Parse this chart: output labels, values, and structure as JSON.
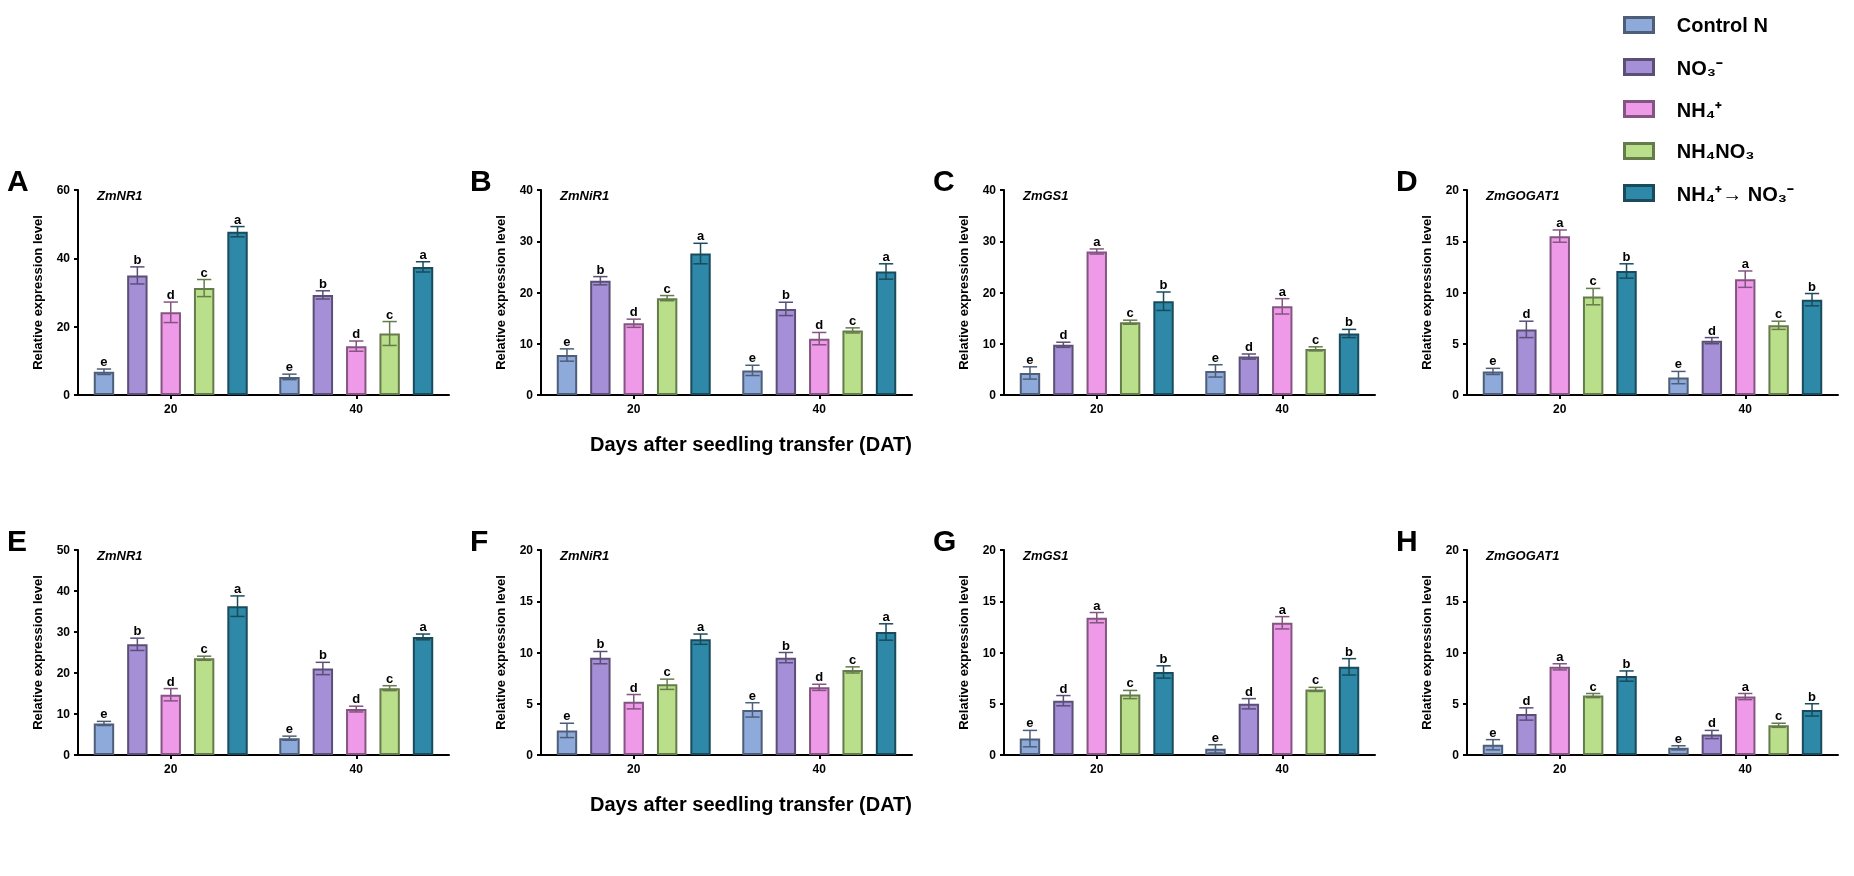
{
  "chart_data": [
    {
      "type": "bar",
      "title": "A",
      "subtitle": "ZmNR1",
      "ylabel": "Relative expression level",
      "legend": "top right",
      "grid": false,
      "categories": [
        "20",
        "40"
      ],
      "ylim": [
        0,
        60
      ],
      "yticks": [
        0,
        20,
        40,
        60
      ],
      "series": [
        {
          "name": "Control N",
          "color": "#8eaadb",
          "values": [
            6.8,
            5.3
          ],
          "errors": [
            0.8,
            0.8
          ],
          "value_labels": [
            "e",
            "e"
          ]
        },
        {
          "name": "NO₃⁻",
          "color": "#a58fd6",
          "values": [
            35,
            29.3
          ],
          "errors": [
            2.5,
            1.2
          ],
          "value_labels": [
            "b",
            "b"
          ]
        },
        {
          "name": "NH₄⁺",
          "color": "#ef9ae8",
          "values": [
            24.2,
            14.3
          ],
          "errors": [
            3,
            1.5
          ],
          "value_labels": [
            "d",
            "d"
          ]
        },
        {
          "name": "NH₄NO₃",
          "color": "#b9df8a",
          "values": [
            31.3,
            18
          ],
          "errors": [
            2.5,
            3.5
          ],
          "value_labels": [
            "c",
            "c"
          ]
        },
        {
          "name": "NH₄⁺→ NO₃⁻",
          "color": "#2e88a8",
          "values": [
            47.8,
            37.5
          ],
          "errors": [
            1.5,
            1.5
          ],
          "value_labels": [
            "a",
            "a"
          ]
        }
      ]
    },
    {
      "type": "bar",
      "title": "B",
      "subtitle": "ZmNiR1",
      "ylabel": "Relative expression level",
      "xlabel": "Days after seedling transfer (DAT)",
      "grid": false,
      "categories": [
        "20",
        "40"
      ],
      "ylim": [
        0,
        40
      ],
      "yticks": [
        0,
        10,
        20,
        30,
        40
      ],
      "series": [
        {
          "color": "#8eaadb",
          "values": [
            7.8,
            4.8
          ],
          "errors": [
            1.2,
            1
          ],
          "value_labels": [
            "e",
            "e"
          ]
        },
        {
          "color": "#a58fd6",
          "values": [
            22.3,
            16.8
          ],
          "errors": [
            0.8,
            1.3
          ],
          "value_labels": [
            "b",
            "b"
          ]
        },
        {
          "color": "#ef9ae8",
          "values": [
            14,
            11
          ],
          "errors": [
            0.8,
            1.2
          ],
          "value_labels": [
            "d",
            "d"
          ]
        },
        {
          "color": "#b9df8a",
          "values": [
            18.9,
            12.6
          ],
          "errors": [
            0.5,
            0.5
          ],
          "value_labels": [
            "c",
            "c"
          ]
        },
        {
          "color": "#2e88a8",
          "values": [
            27.6,
            24.1
          ],
          "errors": [
            2,
            1.5
          ],
          "value_labels": [
            "a",
            "a"
          ]
        }
      ]
    },
    {
      "type": "bar",
      "title": "C",
      "subtitle": "ZmGS1",
      "ylabel": "Relative expression level",
      "grid": false,
      "categories": [
        "20",
        "40"
      ],
      "ylim": [
        0,
        40
      ],
      "yticks": [
        0,
        10,
        20,
        30,
        40
      ],
      "series": [
        {
          "color": "#8eaadb",
          "values": [
            4.3,
            4.7
          ],
          "errors": [
            1.2,
            1.2
          ],
          "value_labels": [
            "e",
            "e"
          ]
        },
        {
          "color": "#a58fd6",
          "values": [
            9.8,
            7.5
          ],
          "errors": [
            0.5,
            0.5
          ],
          "value_labels": [
            "d",
            "d"
          ]
        },
        {
          "color": "#ef9ae8",
          "values": [
            28,
            17.3
          ],
          "errors": [
            0.5,
            1.5
          ],
          "value_labels": [
            "a",
            "a"
          ]
        },
        {
          "color": "#b9df8a",
          "values": [
            14.2,
            9
          ],
          "errors": [
            0.4,
            0.4
          ],
          "value_labels": [
            "c",
            "c"
          ]
        },
        {
          "color": "#2e88a8",
          "values": [
            18.3,
            12
          ],
          "errors": [
            1.8,
            0.8
          ],
          "value_labels": [
            "b",
            "b"
          ]
        }
      ]
    },
    {
      "type": "bar",
      "title": "D",
      "subtitle": "ZmGOGAT1",
      "ylabel": "Relative expression level",
      "grid": false,
      "categories": [
        "20",
        "40"
      ],
      "ylim": [
        0,
        20
      ],
      "yticks": [
        0,
        5,
        10,
        15,
        20
      ],
      "series": [
        {
          "color": "#8eaadb",
          "values": [
            2.3,
            1.7
          ],
          "errors": [
            0.3,
            0.6
          ],
          "value_labels": [
            "e",
            "e"
          ]
        },
        {
          "color": "#a58fd6",
          "values": [
            6.4,
            5.3
          ],
          "errors": [
            0.8,
            0.3
          ],
          "value_labels": [
            "d",
            "d"
          ]
        },
        {
          "color": "#ef9ae8",
          "values": [
            15.5,
            11.3
          ],
          "errors": [
            0.6,
            0.8
          ],
          "value_labels": [
            "a",
            "a"
          ]
        },
        {
          "color": "#b9df8a",
          "values": [
            9.6,
            6.8
          ],
          "errors": [
            0.8,
            0.4
          ],
          "value_labels": [
            "c",
            "c"
          ]
        },
        {
          "color": "#2e88a8",
          "values": [
            12.1,
            9.3
          ],
          "errors": [
            0.7,
            0.6
          ],
          "value_labels": [
            "b",
            "b"
          ]
        }
      ]
    },
    {
      "type": "bar",
      "title": "E",
      "subtitle": "ZmNR1",
      "ylabel": "Relative expression level",
      "grid": false,
      "categories": [
        "20",
        "40"
      ],
      "ylim": [
        0,
        50
      ],
      "yticks": [
        0,
        10,
        20,
        30,
        40,
        50
      ],
      "series": [
        {
          "color": "#8eaadb",
          "values": [
            7.7,
            4.1
          ],
          "errors": [
            0.5,
            0.5
          ],
          "value_labels": [
            "e",
            "e"
          ]
        },
        {
          "color": "#a58fd6",
          "values": [
            27,
            21.1
          ],
          "errors": [
            1.5,
            1.5
          ],
          "value_labels": [
            "b",
            "b"
          ]
        },
        {
          "color": "#ef9ae8",
          "values": [
            14.7,
            11.2
          ],
          "errors": [
            1.5,
            0.7
          ],
          "value_labels": [
            "d",
            "d"
          ]
        },
        {
          "color": "#b9df8a",
          "values": [
            23.6,
            16.3
          ],
          "errors": [
            0.5,
            0.6
          ],
          "value_labels": [
            "c",
            "c"
          ]
        },
        {
          "color": "#2e88a8",
          "values": [
            36.3,
            28.8
          ],
          "errors": [
            2.5,
            0.7
          ],
          "value_labels": [
            "a",
            "a"
          ]
        }
      ]
    },
    {
      "type": "bar",
      "title": "F",
      "subtitle": "ZmNiR1",
      "ylabel": "Relative expression level",
      "xlabel": "Days after seedling transfer (DAT)",
      "grid": false,
      "categories": [
        "20",
        "40"
      ],
      "ylim": [
        0,
        20
      ],
      "yticks": [
        0,
        5,
        10,
        15,
        20
      ],
      "series": [
        {
          "color": "#8eaadb",
          "values": [
            2.4,
            4.4
          ],
          "errors": [
            0.7,
            0.7
          ],
          "value_labels": [
            "e",
            "e"
          ]
        },
        {
          "color": "#a58fd6",
          "values": [
            9.5,
            9.5
          ],
          "errors": [
            0.6,
            0.5
          ],
          "value_labels": [
            "b",
            "b"
          ]
        },
        {
          "color": "#ef9ae8",
          "values": [
            5.2,
            6.6
          ],
          "errors": [
            0.7,
            0.3
          ],
          "value_labels": [
            "d",
            "d"
          ]
        },
        {
          "color": "#b9df8a",
          "values": [
            6.9,
            8.3
          ],
          "errors": [
            0.5,
            0.3
          ],
          "value_labels": [
            "c",
            "c"
          ]
        },
        {
          "color": "#2e88a8",
          "values": [
            11.3,
            12
          ],
          "errors": [
            0.5,
            0.8
          ],
          "value_labels": [
            "a",
            "a"
          ]
        }
      ]
    },
    {
      "type": "bar",
      "title": "G",
      "subtitle": "ZmGS1",
      "ylabel": "Relative expression level",
      "grid": false,
      "categories": [
        "20",
        "40"
      ],
      "ylim": [
        0,
        20
      ],
      "yticks": [
        0,
        5,
        10,
        15,
        20
      ],
      "series": [
        {
          "color": "#8eaadb",
          "values": [
            1.6,
            0.6
          ],
          "errors": [
            0.8,
            0.4
          ],
          "value_labels": [
            "e",
            "e"
          ]
        },
        {
          "color": "#a58fd6",
          "values": [
            5.3,
            5
          ],
          "errors": [
            0.5,
            0.5
          ],
          "value_labels": [
            "d",
            "d"
          ]
        },
        {
          "color": "#ef9ae8",
          "values": [
            13.4,
            12.9
          ],
          "errors": [
            0.5,
            0.6
          ],
          "value_labels": [
            "a",
            "a"
          ]
        },
        {
          "color": "#b9df8a",
          "values": [
            5.9,
            6.4
          ],
          "errors": [
            0.4,
            0.2
          ],
          "value_labels": [
            "c",
            "c"
          ]
        },
        {
          "color": "#2e88a8",
          "values": [
            8.1,
            8.6
          ],
          "errors": [
            0.6,
            0.8
          ],
          "value_labels": [
            "b",
            "b"
          ]
        }
      ]
    },
    {
      "type": "bar",
      "title": "H",
      "subtitle": "ZmGOGAT1",
      "ylabel": "Relative expression level",
      "grid": false,
      "categories": [
        "20",
        "40"
      ],
      "ylim": [
        0,
        20
      ],
      "yticks": [
        0,
        5,
        10,
        15,
        20
      ],
      "series": [
        {
          "color": "#8eaadb",
          "values": [
            1,
            0.7
          ],
          "errors": [
            0.5,
            0.2
          ],
          "value_labels": [
            "e",
            "e"
          ]
        },
        {
          "color": "#a58fd6",
          "values": [
            4,
            2
          ],
          "errors": [
            0.6,
            0.4
          ],
          "value_labels": [
            "d",
            "d"
          ]
        },
        {
          "color": "#ef9ae8",
          "values": [
            8.6,
            5.7
          ],
          "errors": [
            0.3,
            0.3
          ],
          "value_labels": [
            "a",
            "a"
          ]
        },
        {
          "color": "#b9df8a",
          "values": [
            5.8,
            2.9
          ],
          "errors": [
            0.2,
            0.2
          ],
          "value_labels": [
            "c",
            "c"
          ]
        },
        {
          "color": "#2e88a8",
          "values": [
            7.7,
            4.4
          ],
          "errors": [
            0.5,
            0.6
          ],
          "value_labels": [
            "b",
            "b"
          ]
        }
      ]
    }
  ]
}
